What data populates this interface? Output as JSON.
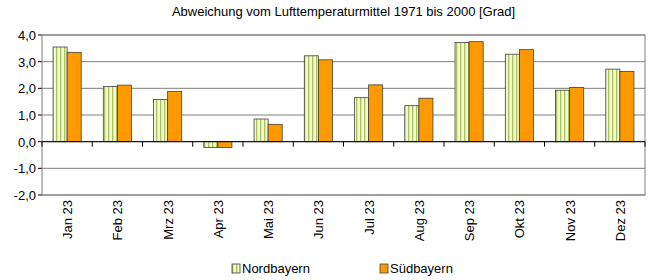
{
  "chart_data": {
    "type": "bar",
    "title": "Abweichung vom Lufttemperaturmittel 1971 bis 2000 [Grad]",
    "categories": [
      "Jan 23",
      "Feb 23",
      "Mrz 23",
      "Apr 23",
      "Mai 23",
      "Jun 23",
      "Jul 23",
      "Aug 23",
      "Sep 23",
      "Okt 23",
      "Nov 23",
      "Dez 23"
    ],
    "series": [
      {
        "name": "Nordbayern",
        "color": "#f4f8d2",
        "values": [
          3.55,
          2.07,
          1.58,
          -0.22,
          0.85,
          3.22,
          1.65,
          1.35,
          3.72,
          3.28,
          1.93,
          2.72
        ]
      },
      {
        "name": "Südbayern",
        "color": "#ff9900",
        "values": [
          3.35,
          2.12,
          1.88,
          -0.22,
          0.65,
          3.07,
          2.13,
          1.63,
          3.75,
          3.45,
          2.03,
          2.63
        ]
      }
    ],
    "ylim": [
      -2,
      4
    ],
    "yticks": [
      {
        "value": -2,
        "label": "-2,0"
      },
      {
        "value": -1,
        "label": "-1,0"
      },
      {
        "value": 0,
        "label": "0,0"
      },
      {
        "value": 1,
        "label": "1,0"
      },
      {
        "value": 2,
        "label": "2,0"
      },
      {
        "value": 3,
        "label": "3,0"
      },
      {
        "value": 4,
        "label": "4,0"
      }
    ],
    "grid": true,
    "legend": "bottom"
  }
}
